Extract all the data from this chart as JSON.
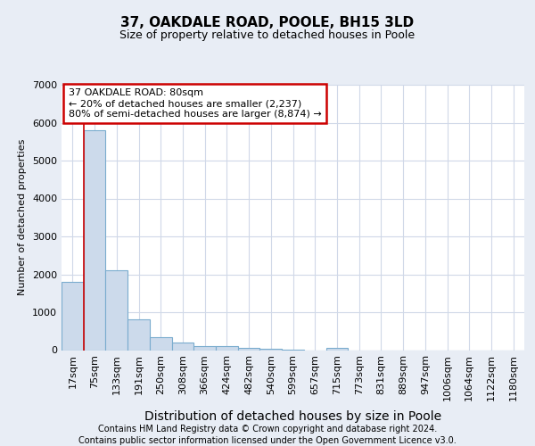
{
  "title_line1": "37, OAKDALE ROAD, POOLE, BH15 3LD",
  "title_line2": "Size of property relative to detached houses in Poole",
  "xlabel": "Distribution of detached houses by size in Poole",
  "ylabel": "Number of detached properties",
  "footer_line1": "Contains HM Land Registry data © Crown copyright and database right 2024.",
  "footer_line2": "Contains public sector information licensed under the Open Government Licence v3.0.",
  "bin_labels": [
    "17sqm",
    "75sqm",
    "133sqm",
    "191sqm",
    "250sqm",
    "308sqm",
    "366sqm",
    "424sqm",
    "482sqm",
    "540sqm",
    "599sqm",
    "657sqm",
    "715sqm",
    "773sqm",
    "831sqm",
    "889sqm",
    "947sqm",
    "1006sqm",
    "1064sqm",
    "1122sqm",
    "1180sqm"
  ],
  "bar_values": [
    1800,
    5800,
    2100,
    820,
    340,
    190,
    110,
    100,
    60,
    30,
    4,
    0,
    60,
    0,
    0,
    0,
    0,
    0,
    0,
    0,
    0
  ],
  "bar_color": "#ccdaeb",
  "bar_edge_color": "#7aacce",
  "annotation_title": "37 OAKDALE ROAD: 80sqm",
  "annotation_line1": "← 20% of detached houses are smaller (2,237)",
  "annotation_line2": "80% of semi-detached houses are larger (8,874) →",
  "annotation_box_color": "#ffffff",
  "annotation_box_edge_color": "#cc0000",
  "red_line_color": "#cc0000",
  "ylim": [
    0,
    7000
  ],
  "yticks": [
    0,
    1000,
    2000,
    3000,
    4000,
    5000,
    6000,
    7000
  ],
  "bg_color": "#e8edf5",
  "plot_bg_color": "#ffffff",
  "grid_color": "#d0d8e8",
  "title1_fontsize": 11,
  "title2_fontsize": 9,
  "ylabel_fontsize": 8,
  "xlabel_fontsize": 10,
  "tick_fontsize": 8,
  "annot_fontsize": 8,
  "footer_fontsize": 7
}
